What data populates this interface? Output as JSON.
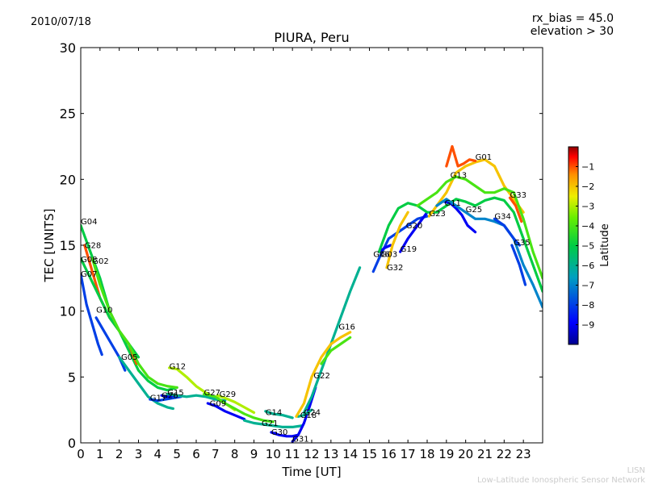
{
  "date": "2010/07/18",
  "rx_bias_text": "rx_bias = 45.0",
  "elevation_text": "elevation > 30",
  "chart_data": {
    "type": "line",
    "title": "PIURA, Peru",
    "xlabel": "Time [UT]",
    "ylabel": "TEC [UNITS]",
    "xlim": [
      0,
      24
    ],
    "ylim": [
      0,
      30
    ],
    "xticks": [
      0,
      1,
      2,
      3,
      4,
      5,
      6,
      7,
      8,
      9,
      10,
      11,
      12,
      13,
      14,
      15,
      16,
      17,
      18,
      19,
      20,
      21,
      22,
      23
    ],
    "yticks": [
      0,
      5,
      10,
      15,
      20,
      25,
      30
    ],
    "colorbar": {
      "label": "Latitude",
      "range": [
        -10,
        0
      ],
      "ticks": [
        -1,
        -2,
        -3,
        -4,
        -5,
        -6,
        -7,
        -8,
        -9
      ]
    },
    "series": [
      {
        "name": "G04",
        "lat": -5,
        "label_at": [
          0.0,
          16.6
        ],
        "x": [
          0,
          0.5,
          1,
          1.5,
          2,
          2.5,
          3,
          3.5,
          4,
          4.5,
          5
        ],
        "y": [
          16.5,
          14.5,
          12.5,
          10,
          8.5,
          7,
          5.5,
          4.7,
          4.2,
          4.0,
          4.2
        ]
      },
      {
        "name": "G28",
        "lat": -1,
        "label_at": [
          0.2,
          14.8
        ],
        "x": [
          0.2,
          0.6,
          1,
          1.5,
          2,
          2.5,
          2.9
        ],
        "y": [
          15,
          13,
          11,
          9.5,
          8.5,
          7.5,
          6
        ]
      },
      {
        "name": "G08",
        "lat": -5,
        "label_at": [
          0.0,
          13.7
        ],
        "x": [
          0,
          0.5,
          1,
          1.5,
          2,
          2.5,
          3
        ],
        "y": [
          14,
          12.5,
          11,
          9.5,
          8.5,
          7.5,
          6.5
        ]
      },
      {
        "name": "G02",
        "lat": -4,
        "label_at": [
          0.6,
          13.6
        ],
        "x": [
          0.6,
          1,
          1.5,
          2,
          2.5,
          3,
          3.5,
          4,
          4.5,
          5
        ],
        "y": [
          14,
          12,
          10,
          8.5,
          7.5,
          6,
          5,
          4.5,
          4.3,
          4.2
        ]
      },
      {
        "name": "G07",
        "lat": -8,
        "label_at": [
          0.0,
          12.6
        ],
        "x": [
          0,
          0.3,
          0.6,
          0.9,
          1.1
        ],
        "y": [
          12.8,
          10.5,
          9,
          7.5,
          6.7
        ]
      },
      {
        "name": "G10",
        "lat": -8,
        "label_at": [
          0.8,
          9.9
        ],
        "x": [
          0.8,
          1.2,
          1.6,
          2.0,
          2.3
        ],
        "y": [
          9.5,
          8.5,
          7.5,
          6.5,
          5.5
        ]
      },
      {
        "name": "G05",
        "lat": -6,
        "label_at": [
          2.1,
          6.3
        ],
        "x": [
          2.0,
          2.5,
          3,
          3.5,
          4,
          4.5,
          4.8
        ],
        "y": [
          6.5,
          5.5,
          4.5,
          3.5,
          3.0,
          2.7,
          2.6
        ]
      },
      {
        "name": "G12",
        "lat": -3,
        "label_at": [
          4.6,
          5.6
        ],
        "x": [
          4.6,
          5,
          5.5,
          6,
          6.5,
          7,
          7.5,
          8
        ],
        "y": [
          5.7,
          5.6,
          5.0,
          4.3,
          3.8,
          3.4,
          3.0,
          2.5
        ]
      },
      {
        "name": "G17",
        "lat": -8,
        "label_at": [
          3.6,
          3.2
        ],
        "x": [
          3.6,
          4,
          4.4,
          4.8,
          5.2
        ],
        "y": [
          3.3,
          3.2,
          3.3,
          3.4,
          3.5
        ]
      },
      {
        "name": "G26",
        "lat": -9,
        "label_at": [
          4.2,
          3.4
        ],
        "x": [
          4.2,
          4.5,
          4.8,
          5.0
        ],
        "y": [
          3.6,
          3.5,
          3.6,
          3.6
        ]
      },
      {
        "name": "G15",
        "lat": -6,
        "label_at": [
          4.5,
          3.6
        ],
        "x": [
          4.5,
          5,
          5.5,
          6,
          6.5,
          7,
          7.5
        ],
        "y": [
          3.7,
          3.6,
          3.5,
          3.6,
          3.5,
          3.3,
          3.2
        ]
      },
      {
        "name": "G27",
        "lat": -4,
        "label_at": [
          6.4,
          3.6
        ],
        "x": [
          6.4,
          7,
          7.5,
          8,
          8.5,
          9,
          9.5,
          10
        ],
        "y": [
          3.7,
          3.5,
          3.0,
          2.6,
          2.2,
          1.9,
          1.7,
          1.6
        ]
      },
      {
        "name": "G29",
        "lat": -3,
        "label_at": [
          7.2,
          3.5
        ],
        "x": [
          7.1,
          7.5,
          8,
          8.5,
          9
        ],
        "y": [
          3.6,
          3.4,
          3.1,
          2.7,
          2.3
        ]
      },
      {
        "name": "G09",
        "lat": -9,
        "label_at": [
          6.7,
          2.8
        ],
        "x": [
          6.6,
          7,
          7.5,
          8,
          8.5
        ],
        "y": [
          3.0,
          2.8,
          2.4,
          2.1,
          1.8
        ]
      },
      {
        "name": "G14",
        "lat": -6,
        "label_at": [
          9.6,
          2.1
        ],
        "x": [
          9.6,
          10,
          10.5,
          11
        ],
        "y": [
          2.4,
          2.2,
          2.1,
          1.9
        ]
      },
      {
        "name": "G21",
        "lat": -6,
        "label_at": [
          9.4,
          1.3
        ],
        "x": [
          8.5,
          9,
          9.5,
          10,
          10.5,
          11,
          11.5
        ],
        "y": [
          1.7,
          1.5,
          1.4,
          1.3,
          1.2,
          1.2,
          1.3
        ]
      },
      {
        "name": "G30",
        "lat": -9,
        "label_at": [
          9.9,
          0.6
        ],
        "x": [
          9.9,
          10.3,
          10.7,
          11,
          11.3
        ],
        "y": [
          0.8,
          0.6,
          0.5,
          0.5,
          0.6
        ]
      },
      {
        "name": "G31",
        "lat": -9,
        "label_at": [
          11.0,
          0.1
        ],
        "x": [
          11.0,
          11.3,
          11.6,
          11.9,
          12.2
        ],
        "y": [
          0.1,
          0.6,
          1.5,
          2.8,
          4.2
        ]
      },
      {
        "name": "G18",
        "lat": -6,
        "label_at": [
          11.4,
          1.9
        ],
        "x": [
          11.3,
          11.6,
          12
        ],
        "y": [
          2.0,
          2.1,
          2.5
        ]
      },
      {
        "name": "G24",
        "lat": -6,
        "label_at": [
          11.6,
          2.1
        ],
        "x": [
          11.6,
          12,
          12.5,
          13,
          13.5,
          14,
          14.5
        ],
        "y": [
          2.3,
          3.5,
          5.5,
          7.5,
          9.5,
          11.5,
          13.3
        ]
      },
      {
        "name": "G22",
        "lat": -2,
        "label_at": [
          12.1,
          4.9
        ],
        "x": [
          11.2,
          11.6,
          12,
          12.5,
          13,
          13.5,
          14
        ],
        "y": [
          2.0,
          3.0,
          5.0,
          6.5,
          7.5,
          8.0,
          8.4
        ]
      },
      {
        "name": "G16",
        "lat": -4,
        "label_at": [
          13.4,
          8.6
        ],
        "x": [
          12.5,
          13,
          13.5,
          14
        ],
        "y": [
          6.0,
          7.0,
          7.5,
          8.0
        ]
      },
      {
        "name": "G06",
        "lat": -8,
        "label_at": [
          15.2,
          14.1
        ],
        "x": [
          15.2,
          15.5,
          16,
          16.5,
          17,
          17.5,
          18
        ],
        "y": [
          13.0,
          14.0,
          15.5,
          16.0,
          16.5,
          17.0,
          17.2
        ]
      },
      {
        "name": "G03",
        "lat": -9,
        "label_at": [
          15.6,
          14.1
        ],
        "x": [
          15.5,
          15.8,
          16.1
        ],
        "y": [
          14.5,
          14.8,
          15.0
        ]
      },
      {
        "name": "G32",
        "lat": -2,
        "label_at": [
          15.9,
          13.1
        ],
        "x": [
          15.9,
          16.2,
          16.6,
          17
        ],
        "y": [
          13.3,
          15.0,
          16.5,
          17.5
        ]
      },
      {
        "name": "G19",
        "lat": -9,
        "label_at": [
          16.6,
          14.5
        ],
        "x": [
          16.6,
          17,
          17.5,
          18
        ],
        "y": [
          14.5,
          15.5,
          16.5,
          17.5
        ]
      },
      {
        "name": "G20",
        "lat": -5,
        "label_at": [
          16.9,
          16.3
        ],
        "x": [
          15.5,
          16,
          16.5,
          17,
          17.5,
          18,
          18.5,
          19,
          19.5,
          20,
          20.5,
          21,
          21.5,
          22,
          22.5,
          23,
          23.5,
          24
        ],
        "y": [
          14.5,
          16.5,
          17.8,
          18.2,
          18.0,
          17.5,
          17.5,
          18.0,
          18.5,
          18.3,
          18.0,
          18.4,
          18.6,
          18.4,
          17.5,
          15.5,
          13.5,
          11.5
        ]
      },
      {
        "name": "G23",
        "lat": -2,
        "label_at": [
          18.1,
          17.2
        ],
        "x": [
          18.1,
          18.5,
          19,
          19.5,
          20,
          20.5,
          21,
          21.5,
          22,
          22.5,
          23
        ],
        "y": [
          17.2,
          18.0,
          19.0,
          20.5,
          21.0,
          21.3,
          21.5,
          21.0,
          19.5,
          18.5,
          17.5
        ]
      },
      {
        "name": "G11",
        "lat": -9,
        "label_at": [
          18.9,
          18.0
        ],
        "x": [
          18.9,
          19.2,
          19.5,
          19.8,
          20.1,
          20.5
        ],
        "y": [
          18.3,
          18.2,
          17.8,
          17.3,
          16.5,
          16.0
        ]
      },
      {
        "name": "G13",
        "lat": -4,
        "label_at": [
          19.2,
          20.1
        ],
        "x": [
          17.5,
          18,
          18.5,
          19,
          19.5,
          20,
          20.5,
          21,
          21.5,
          22,
          22.5,
          23,
          23.5,
          24
        ],
        "y": [
          18.0,
          18.5,
          19.0,
          19.8,
          20.2,
          20.0,
          19.5,
          19.0,
          19.0,
          19.3,
          19.0,
          17.0,
          14.5,
          12.5
        ]
      },
      {
        "name": "G01",
        "lat": -1,
        "label_at": [
          20.5,
          21.5
        ],
        "x": [
          19.0,
          19.3,
          19.6,
          19.9,
          20.2,
          20.5
        ],
        "y": [
          21.0,
          22.5,
          21.0,
          21.2,
          21.5,
          21.4
        ]
      },
      {
        "name": "G25",
        "lat": -7,
        "label_at": [
          20.0,
          17.5
        ],
        "x": [
          18.5,
          19,
          19.5,
          20,
          20.5,
          21,
          21.5,
          22,
          22.5,
          23,
          23.5,
          24
        ],
        "y": [
          18.0,
          18.5,
          18.0,
          17.5,
          17.0,
          17.0,
          16.8,
          16.5,
          15.5,
          13.5,
          12.0,
          10.3
        ]
      },
      {
        "name": "G33",
        "lat": -1,
        "label_at": [
          22.3,
          18.6
        ],
        "x": [
          22.3,
          22.6,
          22.9
        ],
        "y": [
          18.6,
          18.0,
          16.8
        ]
      },
      {
        "name": "G34",
        "lat": -8,
        "label_at": [
          21.5,
          17.0
        ],
        "x": [
          21.5,
          22,
          22.5,
          22.8
        ],
        "y": [
          17.0,
          16.5,
          15.5,
          15.0
        ]
      },
      {
        "name": "G35",
        "lat": -8,
        "label_at": [
          22.5,
          15.0
        ],
        "x": [
          22.4,
          22.8,
          23.1
        ],
        "y": [
          15.0,
          13.5,
          12.0
        ]
      }
    ]
  },
  "footer": {
    "line1": "LISN",
    "line2": "Low-Latitude Ionospheric Sensor Network"
  }
}
